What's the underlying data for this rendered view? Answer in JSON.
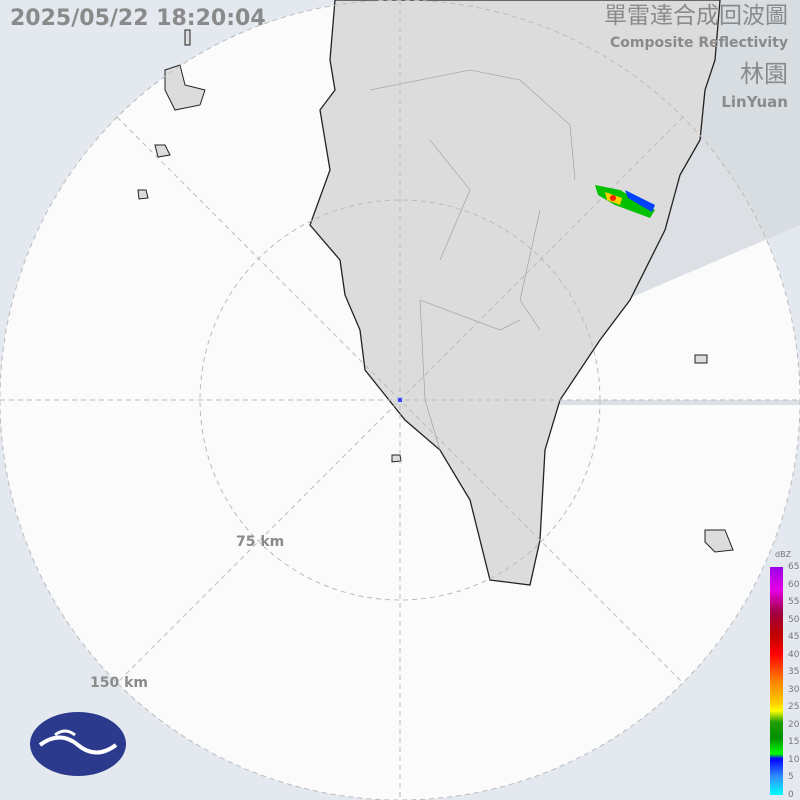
{
  "timestamp": "2025/05/22 18:20:04",
  "title_zh": "單雷達合成回波圖",
  "title_en": "Composite Reflectivity",
  "station_zh": "林園",
  "station_en": "LinYuan",
  "range_rings": [
    "75 km",
    "150 km"
  ],
  "legend": {
    "unit": "dBZ",
    "ticks": [
      "65",
      "60",
      "55",
      "50",
      "45",
      "40",
      "35",
      "30",
      "25",
      "20",
      "15",
      "10",
      "5",
      "0"
    ]
  },
  "colors": {
    "background": "#e4e9ef",
    "land": "#dcdcdc",
    "logo": "#2b3a8c"
  },
  "logo": "cwa-logo"
}
